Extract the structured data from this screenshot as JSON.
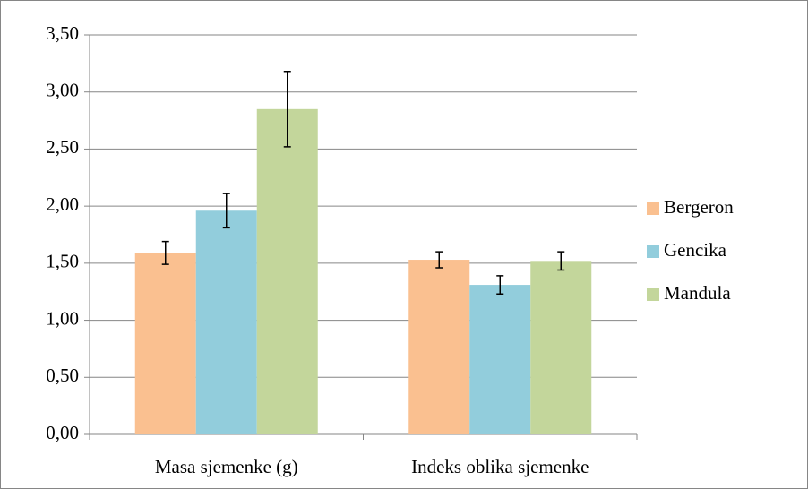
{
  "chart_data": {
    "type": "bar",
    "categories": [
      "Masa sjemenke (g)",
      "Indeks oblika sjemenke"
    ],
    "series": [
      {
        "name": "Bergeron",
        "color": "#fac090",
        "values": [
          1.59,
          1.53
        ],
        "errors": [
          0.1,
          0.07
        ]
      },
      {
        "name": "Gencika",
        "color": "#92cddc",
        "values": [
          1.96,
          1.31
        ],
        "errors": [
          0.15,
          0.08
        ]
      },
      {
        "name": "Mandula",
        "color": "#c3d69b",
        "values": [
          2.85,
          1.52
        ],
        "errors": [
          0.33,
          0.08
        ]
      }
    ],
    "ylim": [
      0,
      3.5
    ],
    "yticks": [
      {
        "value": 0,
        "label": "0,00"
      },
      {
        "value": 0.5,
        "label": "0,50"
      },
      {
        "value": 1,
        "label": "1,00"
      },
      {
        "value": 1.5,
        "label": "1,50"
      },
      {
        "value": 2,
        "label": "2,00"
      },
      {
        "value": 2.5,
        "label": "2,50"
      },
      {
        "value": 3,
        "label": "3,00"
      },
      {
        "value": 3.5,
        "label": "3,50"
      }
    ],
    "grid": true,
    "legend": "right"
  }
}
